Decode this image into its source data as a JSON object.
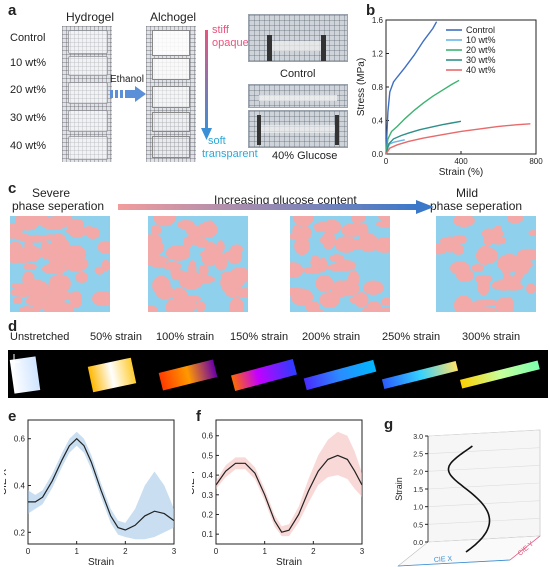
{
  "panel_labels": {
    "a": "a",
    "b": "b",
    "c": "c",
    "d": "d",
    "e": "e",
    "f": "f",
    "g": "g"
  },
  "panel_a": {
    "hydrogel_title": "Hydrogel",
    "alchogel_title": "Alchogel",
    "row_labels": [
      "Control",
      "10 wt%",
      "20 wt%",
      "30 wt%",
      "40 wt%"
    ],
    "ethanol_label": "Ethanol",
    "stiff": "stiff",
    "opaque": "opaque",
    "soft": "soft",
    "transparent": "transparent",
    "control_label": "Control",
    "glucose_label": "40% Glucose",
    "colors": {
      "pink": "#e8547e",
      "blue": "#3b8fd6",
      "cyan": "#29a9d9"
    }
  },
  "panel_c": {
    "left_title_1": "Severe",
    "left_title_2": "phase seperation",
    "middle_title": "Increasing glucose content",
    "right_title_1": "Mild",
    "right_title_2": "phase seperation",
    "colors": {
      "pink": "#f2a9a7",
      "blue": "#8fd1ec"
    }
  },
  "panel_d": {
    "labels": [
      "Unstretched",
      "50% strain",
      "100% strain",
      "150% strain",
      "200% strain",
      "250% strain",
      "300% strain"
    ]
  },
  "chart_data": [
    {
      "id": "b",
      "type": "line",
      "xlabel": "Strain (%)",
      "ylabel": "Stress (MPa)",
      "xlim": [
        0,
        800
      ],
      "ylim": [
        0,
        1.6
      ],
      "xticks": [
        0,
        400,
        800
      ],
      "yticks": [
        0.0,
        0.4,
        0.8,
        1.2,
        1.6
      ],
      "xtick_labels": [
        "0",
        "400",
        "800"
      ],
      "ytick_labels": [
        "0.0",
        "0.4",
        "0.8",
        "1.2",
        "1.6"
      ],
      "legend_position": "top-right",
      "series": [
        {
          "name": "Control",
          "color": "#3f6fc2",
          "x": [
            0,
            10,
            20,
            40,
            60,
            100,
            150,
            200,
            250,
            270
          ],
          "y": [
            0,
            0.5,
            0.74,
            0.86,
            0.92,
            1.03,
            1.18,
            1.35,
            1.5,
            1.58
          ]
        },
        {
          "name": "10 wt%",
          "color": "#6bb5e8",
          "x": [
            0,
            10,
            20,
            40,
            60,
            80,
            100
          ],
          "y": [
            0,
            0.08,
            0.12,
            0.14,
            0.15,
            0.16,
            0.17
          ]
        },
        {
          "name": "20 wt%",
          "color": "#3cb371",
          "x": [
            0,
            10,
            30,
            60,
            100,
            150,
            200,
            250,
            300,
            350,
            390
          ],
          "y": [
            0,
            0.18,
            0.27,
            0.33,
            0.42,
            0.52,
            0.61,
            0.69,
            0.76,
            0.83,
            0.88
          ]
        },
        {
          "name": "30 wt%",
          "color": "#2f8f8a",
          "x": [
            0,
            15,
            40,
            80,
            120,
            180,
            240,
            300,
            350,
            400
          ],
          "y": [
            0,
            0.12,
            0.18,
            0.22,
            0.25,
            0.29,
            0.32,
            0.35,
            0.37,
            0.39
          ]
        },
        {
          "name": "40 wt%",
          "color": "#e86a6a",
          "x": [
            0,
            20,
            60,
            120,
            200,
            300,
            400,
            500,
            600,
            700,
            770
          ],
          "y": [
            0,
            0.07,
            0.11,
            0.15,
            0.19,
            0.23,
            0.27,
            0.3,
            0.33,
            0.35,
            0.36
          ]
        }
      ]
    },
    {
      "id": "e",
      "type": "line",
      "xlabel": "Strain",
      "ylabel": "CIE X",
      "xlim": [
        0,
        3
      ],
      "ylim": [
        0.15,
        0.68
      ],
      "xticks": [
        0,
        1,
        2,
        3
      ],
      "yticks": [
        0.2,
        0.4,
        0.6
      ],
      "xtick_labels": [
        "0",
        "1",
        "2",
        "3"
      ],
      "ytick_labels": [
        "0.2",
        "0.4",
        "0.6"
      ],
      "line_color": "#222222",
      "band_color": "#9dc3e6",
      "series": [
        {
          "name": "mean",
          "x": [
            0,
            0.15,
            0.3,
            0.5,
            0.7,
            0.85,
            1.0,
            1.15,
            1.3,
            1.5,
            1.7,
            1.85,
            2.0,
            2.2,
            2.4,
            2.6,
            2.8,
            3.0
          ],
          "y": [
            0.33,
            0.33,
            0.35,
            0.42,
            0.51,
            0.57,
            0.6,
            0.57,
            0.5,
            0.38,
            0.27,
            0.22,
            0.21,
            0.23,
            0.27,
            0.29,
            0.28,
            0.25
          ]
        },
        {
          "name": "upper",
          "x": [
            0,
            0.15,
            0.3,
            0.5,
            0.7,
            0.85,
            1.0,
            1.15,
            1.3,
            1.5,
            1.7,
            1.85,
            2.0,
            2.2,
            2.4,
            2.6,
            2.8,
            3.0
          ],
          "y": [
            0.38,
            0.36,
            0.38,
            0.45,
            0.54,
            0.6,
            0.63,
            0.6,
            0.53,
            0.41,
            0.3,
            0.25,
            0.24,
            0.3,
            0.4,
            0.46,
            0.4,
            0.3
          ]
        },
        {
          "name": "lower",
          "x": [
            0,
            0.15,
            0.3,
            0.5,
            0.7,
            0.85,
            1.0,
            1.15,
            1.3,
            1.5,
            1.7,
            1.85,
            2.0,
            2.2,
            2.4,
            2.6,
            2.8,
            3.0
          ],
          "y": [
            0.28,
            0.3,
            0.32,
            0.39,
            0.48,
            0.54,
            0.57,
            0.54,
            0.47,
            0.35,
            0.24,
            0.19,
            0.18,
            0.17,
            0.17,
            0.18,
            0.2,
            0.22
          ]
        }
      ]
    },
    {
      "id": "f",
      "type": "line",
      "xlabel": "Strain",
      "ylabel": "CIE Y",
      "xlim": [
        0,
        3
      ],
      "ylim": [
        0.05,
        0.68
      ],
      "xticks": [
        0,
        1,
        2,
        3
      ],
      "yticks": [
        0.1,
        0.2,
        0.3,
        0.4,
        0.5,
        0.6
      ],
      "xtick_labels": [
        "0",
        "1",
        "2",
        "3"
      ],
      "ytick_labels": [
        "0.1",
        "0.2",
        "0.3",
        "0.4",
        "0.5",
        "0.6"
      ],
      "line_color": "#222222",
      "band_color": "#f4b9b6",
      "series": [
        {
          "name": "mean",
          "x": [
            0,
            0.2,
            0.4,
            0.6,
            0.8,
            1.0,
            1.2,
            1.35,
            1.5,
            1.7,
            1.9,
            2.1,
            2.3,
            2.5,
            2.7,
            2.85,
            3.0
          ],
          "y": [
            0.35,
            0.42,
            0.46,
            0.46,
            0.41,
            0.3,
            0.17,
            0.11,
            0.12,
            0.2,
            0.32,
            0.42,
            0.48,
            0.5,
            0.48,
            0.42,
            0.35
          ]
        },
        {
          "name": "upper",
          "x": [
            0,
            0.2,
            0.4,
            0.6,
            0.8,
            1.0,
            1.2,
            1.35,
            1.5,
            1.7,
            1.9,
            2.1,
            2.3,
            2.5,
            2.7,
            2.85,
            3.0
          ],
          "y": [
            0.37,
            0.45,
            0.49,
            0.49,
            0.44,
            0.33,
            0.2,
            0.14,
            0.15,
            0.24,
            0.38,
            0.5,
            0.58,
            0.62,
            0.6,
            0.52,
            0.41
          ]
        },
        {
          "name": "lower",
          "x": [
            0,
            0.2,
            0.4,
            0.6,
            0.8,
            1.0,
            1.2,
            1.35,
            1.5,
            1.7,
            1.9,
            2.1,
            2.3,
            2.5,
            2.7,
            2.85,
            3.0
          ],
          "y": [
            0.33,
            0.39,
            0.43,
            0.43,
            0.38,
            0.27,
            0.14,
            0.09,
            0.09,
            0.16,
            0.26,
            0.35,
            0.39,
            0.4,
            0.38,
            0.33,
            0.29
          ]
        }
      ]
    },
    {
      "id": "g",
      "type": "line",
      "zlabel": "Strain",
      "xlabel": "CIE X",
      "ylabel": "CIE Y",
      "zlim": [
        0,
        3
      ],
      "zticks": [
        0.0,
        0.5,
        1.0,
        1.5,
        2.0,
        2.5,
        3.0
      ],
      "ztick_labels": [
        "0.0",
        "0.5",
        "1.0",
        "1.5",
        "2.0",
        "2.5",
        "3.0"
      ],
      "line_color": "#111111"
    }
  ]
}
